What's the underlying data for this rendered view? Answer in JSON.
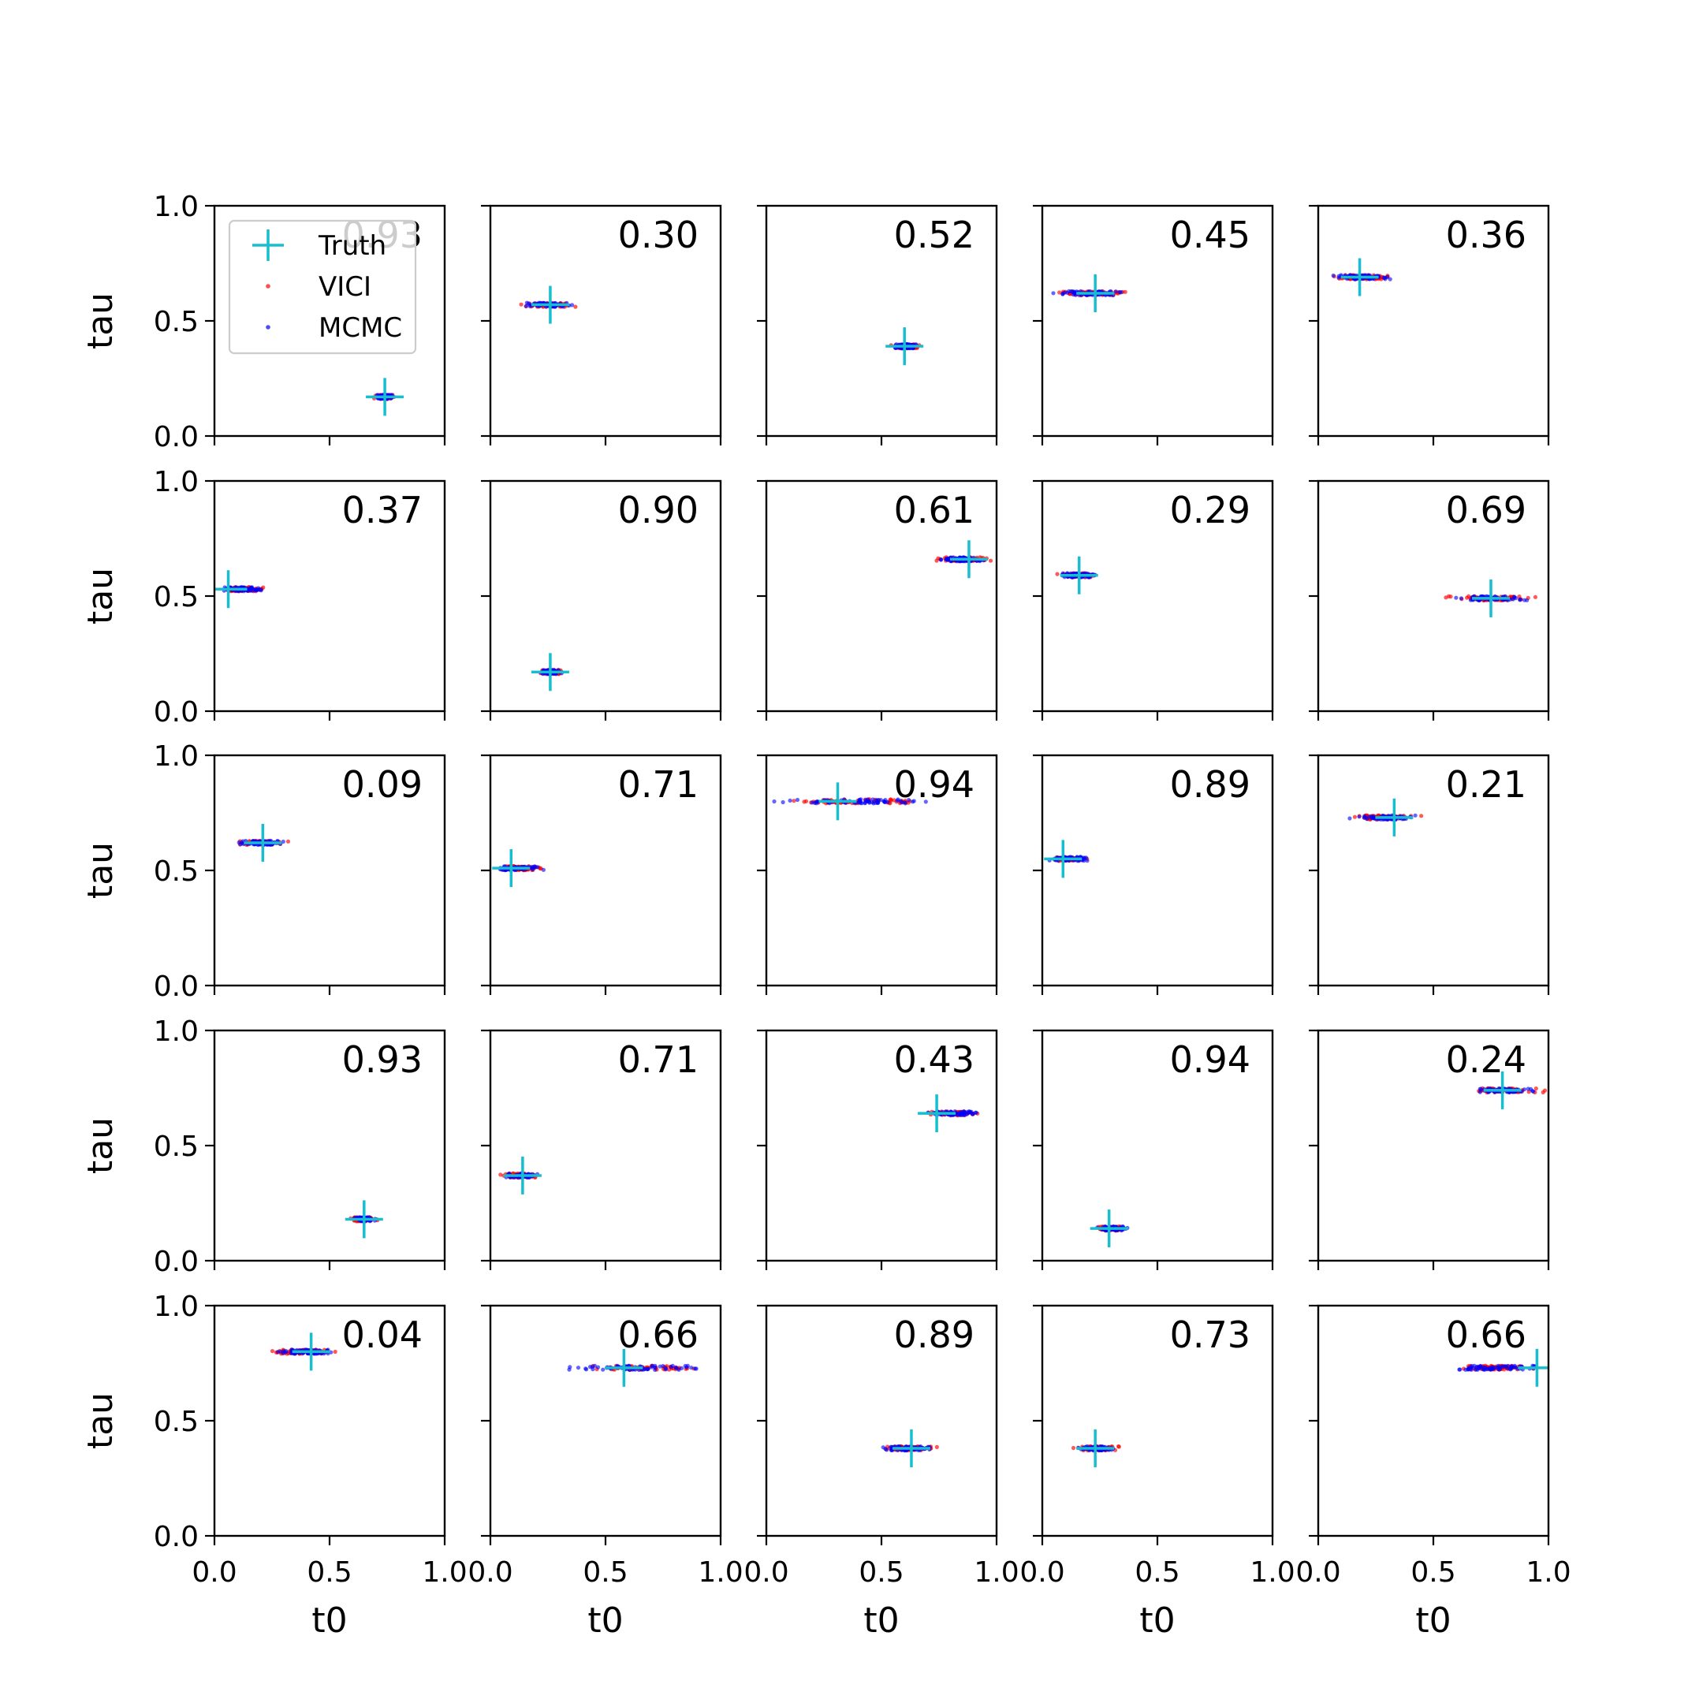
{
  "chart_data": {
    "type": "scatter",
    "grid": false,
    "layout": {
      "rows": 5,
      "cols": 5
    },
    "xlabel": "t0",
    "ylabel": "tau",
    "xlim": [
      0.0,
      1.0
    ],
    "ylim": [
      0.0,
      1.0
    ],
    "xticks": [
      "0.0",
      "0.5",
      "1.0"
    ],
    "yticks": [
      "0.0",
      "0.5",
      "1.0"
    ],
    "legend": {
      "placement": "upper-left of first panel",
      "entries": [
        {
          "name": "Truth",
          "marker": "plus",
          "color": "#17becf"
        },
        {
          "name": "VICI",
          "marker": "dot",
          "color": "#ff0000"
        },
        {
          "name": "MCMC",
          "marker": "dot",
          "color": "#0000ff"
        }
      ]
    },
    "colors": {
      "truth": "#17becf",
      "vici": "#ff0000",
      "mcmc": "#0000ff"
    },
    "panels": [
      {
        "score": "0.93",
        "truth": [
          0.74,
          0.17
        ],
        "vici": [
          0.68,
          0.8,
          0.17
        ],
        "mcmc": [
          0.69,
          0.79,
          0.17
        ]
      },
      {
        "score": "0.30",
        "truth": [
          0.26,
          0.57
        ],
        "vici": [
          0.12,
          0.38,
          0.57
        ],
        "mcmc": [
          0.13,
          0.37,
          0.57
        ]
      },
      {
        "score": "0.52",
        "truth": [
          0.6,
          0.39
        ],
        "vici": [
          0.53,
          0.68,
          0.39
        ],
        "mcmc": [
          0.54,
          0.67,
          0.39
        ]
      },
      {
        "score": "0.45",
        "truth": [
          0.23,
          0.62
        ],
        "vici": [
          0.01,
          0.43,
          0.62
        ],
        "mcmc": [
          0.01,
          0.41,
          0.62
        ]
      },
      {
        "score": "0.36",
        "truth": [
          0.18,
          0.69
        ],
        "vici": [
          0.0,
          0.35,
          0.69
        ],
        "mcmc": [
          0.0,
          0.34,
          0.69
        ]
      },
      {
        "score": "0.37",
        "truth": [
          0.06,
          0.53
        ],
        "vici": [
          0.0,
          0.25,
          0.53
        ],
        "mcmc": [
          0.0,
          0.24,
          0.53
        ]
      },
      {
        "score": "0.90",
        "truth": [
          0.26,
          0.17
        ],
        "vici": [
          0.2,
          0.33,
          0.17
        ],
        "mcmc": [
          0.21,
          0.32,
          0.17
        ]
      },
      {
        "score": "0.61",
        "truth": [
          0.88,
          0.66
        ],
        "vici": [
          0.7,
          1.0,
          0.66
        ],
        "mcmc": [
          0.71,
          1.0,
          0.66
        ]
      },
      {
        "score": "0.29",
        "truth": [
          0.16,
          0.59
        ],
        "vici": [
          0.03,
          0.27,
          0.59
        ],
        "mcmc": [
          0.04,
          0.27,
          0.59
        ]
      },
      {
        "score": "0.69",
        "truth": [
          0.75,
          0.49
        ],
        "vici": [
          0.53,
          0.99,
          0.49
        ],
        "mcmc": [
          0.55,
          0.98,
          0.49
        ]
      },
      {
        "score": "0.09",
        "truth": [
          0.21,
          0.62
        ],
        "vici": [
          0.08,
          0.33,
          0.62
        ],
        "mcmc": [
          0.08,
          0.33,
          0.62
        ]
      },
      {
        "score": "0.71",
        "truth": [
          0.09,
          0.51
        ],
        "vici": [
          0.0,
          0.25,
          0.51
        ],
        "mcmc": [
          0.0,
          0.25,
          0.51
        ]
      },
      {
        "score": "0.94",
        "truth": [
          0.31,
          0.8
        ],
        "vici": [
          0.0,
          0.82,
          0.8
        ],
        "mcmc": [
          0.0,
          0.8,
          0.8
        ]
      },
      {
        "score": "0.89",
        "truth": [
          0.09,
          0.55
        ],
        "vici": [
          0.0,
          0.2,
          0.55
        ],
        "mcmc": [
          0.0,
          0.23,
          0.55
        ]
      },
      {
        "score": "0.21",
        "truth": [
          0.33,
          0.73
        ],
        "vici": [
          0.1,
          0.48,
          0.73
        ],
        "mcmc": [
          0.12,
          0.46,
          0.73
        ]
      },
      {
        "score": "0.93",
        "truth": [
          0.65,
          0.18
        ],
        "vici": [
          0.58,
          0.72,
          0.18
        ],
        "mcmc": [
          0.59,
          0.71,
          0.18
        ]
      },
      {
        "score": "0.71",
        "truth": [
          0.14,
          0.37
        ],
        "vici": [
          0.03,
          0.23,
          0.37
        ],
        "mcmc": [
          0.04,
          0.22,
          0.37
        ]
      },
      {
        "score": "0.43",
        "truth": [
          0.74,
          0.64
        ],
        "vici": [
          0.65,
          0.98,
          0.64
        ],
        "mcmc": [
          0.66,
          0.99,
          0.64
        ]
      },
      {
        "score": "0.94",
        "truth": [
          0.29,
          0.14
        ],
        "vici": [
          0.22,
          0.38,
          0.14
        ],
        "mcmc": [
          0.22,
          0.39,
          0.14
        ]
      },
      {
        "score": "0.24",
        "truth": [
          0.8,
          0.74
        ],
        "vici": [
          0.62,
          1.0,
          0.74
        ],
        "mcmc": [
          0.62,
          1.0,
          0.74
        ]
      },
      {
        "score": "0.04",
        "truth": [
          0.42,
          0.8
        ],
        "vici": [
          0.19,
          0.58,
          0.8
        ],
        "mcmc": [
          0.22,
          0.57,
          0.8
        ]
      },
      {
        "score": "0.66",
        "truth": [
          0.58,
          0.73
        ],
        "vici": [
          0.33,
          0.98,
          0.73
        ],
        "mcmc": [
          0.3,
          0.98,
          0.73
        ]
      },
      {
        "score": "0.89",
        "truth": [
          0.63,
          0.38
        ],
        "vici": [
          0.46,
          0.78,
          0.38
        ],
        "mcmc": [
          0.47,
          0.76,
          0.38
        ]
      },
      {
        "score": "0.73",
        "truth": [
          0.23,
          0.38
        ],
        "vici": [
          0.13,
          0.35,
          0.38
        ],
        "mcmc": [
          0.14,
          0.33,
          0.38
        ]
      },
      {
        "score": "0.66",
        "truth": [
          0.95,
          0.73
        ],
        "vici": [
          0.57,
          1.0,
          0.73
        ],
        "mcmc": [
          0.52,
          1.0,
          0.73
        ]
      }
    ]
  }
}
